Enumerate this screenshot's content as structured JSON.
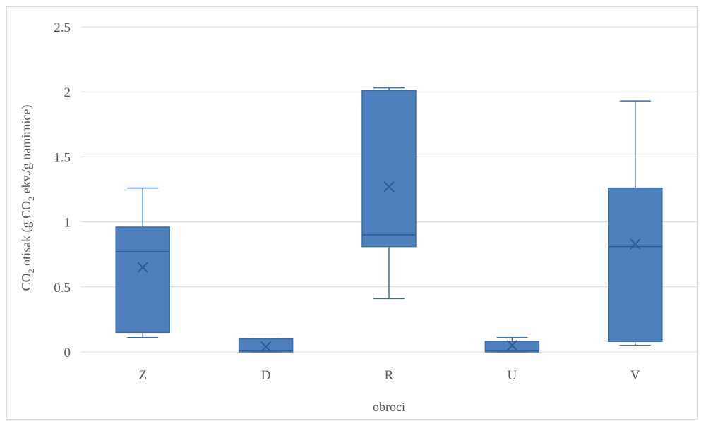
{
  "chart_data": {
    "type": "boxplot",
    "xlabel": "obroci",
    "ylabel": {
      "prefix": "CO",
      "sub1": "2",
      "mid": " otisak (g CO",
      "sub2": "2",
      "suffix": " ekv./g namirnice)"
    },
    "ylim": [
      0,
      2.5
    ],
    "yticks": [
      "0",
      "0.5",
      "1",
      "1.5",
      "2",
      "2.5"
    ],
    "ytick_values": [
      0,
      0.5,
      1,
      1.5,
      2,
      2.5
    ],
    "grid": true,
    "categories": [
      "Z",
      "D",
      "R",
      "U",
      "V"
    ],
    "boxes": [
      {
        "category": "Z",
        "min": 0.11,
        "q1": 0.15,
        "median": 0.77,
        "q3": 0.96,
        "max": 1.26,
        "mean": 0.65
      },
      {
        "category": "D",
        "min": 0.0,
        "q1": 0.0,
        "median": 0.01,
        "q3": 0.1,
        "max": 0.1,
        "mean": 0.04
      },
      {
        "category": "R",
        "min": 0.41,
        "q1": 0.81,
        "median": 0.9,
        "q3": 2.01,
        "max": 2.03,
        "mean": 1.27
      },
      {
        "category": "U",
        "min": 0.0,
        "q1": 0.0,
        "median": 0.01,
        "q3": 0.08,
        "max": 0.11,
        "mean": 0.05
      },
      {
        "category": "V",
        "min": 0.05,
        "q1": 0.08,
        "median": 0.81,
        "q3": 1.26,
        "max": 1.93,
        "mean": 0.83
      }
    ],
    "colors": {
      "box_fill": "#4e80bd",
      "box_stroke": "#3d6ba8",
      "whisker": "#3d6ba8",
      "median": "#2f5b8f",
      "mean_marker": "#2f5b8f",
      "grid": "#d9d9d9"
    }
  }
}
